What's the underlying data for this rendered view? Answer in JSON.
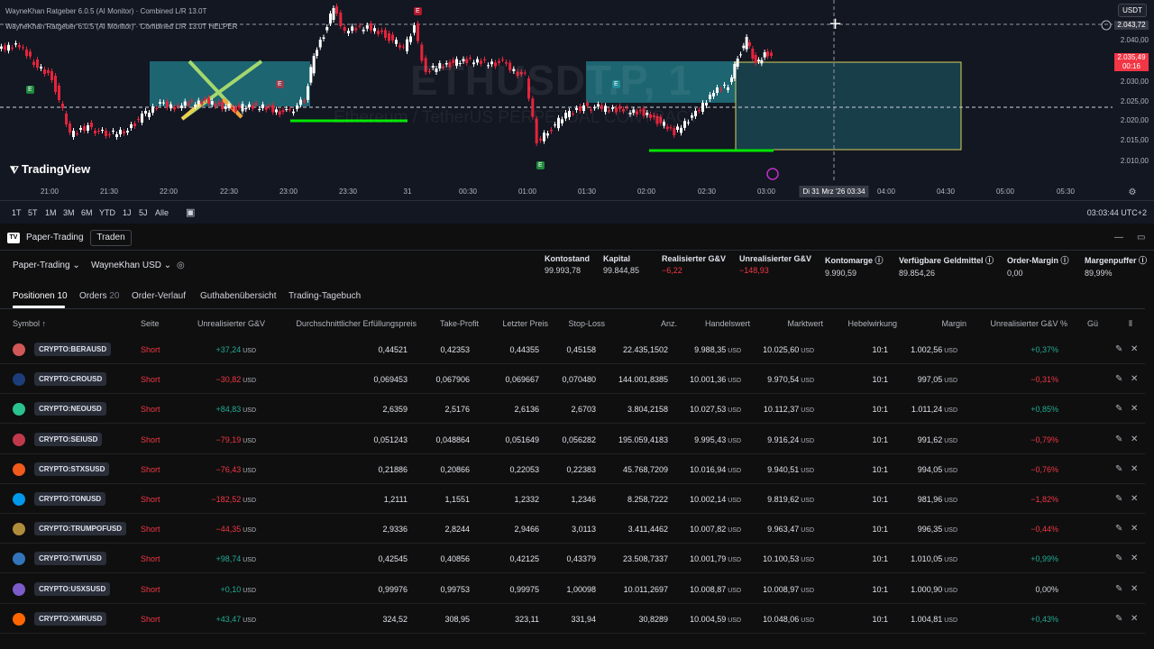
{
  "chart": {
    "indicator_1": "WayneKhan Ratgeber 6.0.5 (AI Monitor) · Combined L/R 13.0T",
    "indicator_2": "WayneKhan Ratgeber 6.0.5 (AI Monitor) · Combined L/R 13.0T HELPER",
    "watermark_symbol": "ETHUSDT.P, 1",
    "watermark_desc": "Ethereum / TetherUS PERPETUAL CONTRACT",
    "currency_btn": "USDT",
    "price_labels": [
      "2.040,00",
      "2.030,00",
      "2.025,00",
      "2.020,00",
      "2.015,00",
      "2.010,00"
    ],
    "crosshair_price": "2.043,72",
    "last_price": "2.035,49",
    "last_price_countdown": "00:16",
    "time_labels": [
      "21:00",
      "21:30",
      "22:00",
      "22:30",
      "23:00",
      "23:30",
      "31",
      "00:30",
      "01:00",
      "01:30",
      "02:00",
      "02:30",
      "03:00",
      "04:00",
      "04:30",
      "05:00",
      "05:30"
    ],
    "crosshair_time": "Di 31 Mrz '26   03:34",
    "logo": "TradingView",
    "marker_e": "E",
    "colors": {
      "up": "#ffffff",
      "down": "#e5243b",
      "zone": "#26a6b3",
      "green_line": "#00e600",
      "last_price_bg": "#f23645"
    }
  },
  "range_bar": {
    "buttons": [
      "1T",
      "5T",
      "1M",
      "3M",
      "6M",
      "YTD",
      "1J",
      "5J",
      "Alle"
    ],
    "clock": "03:03:44 UTC+2"
  },
  "panel": {
    "broker": "Paper-Trading",
    "trade_button": "Traden",
    "account": "Paper-Trading ⌄",
    "user": "WayneKhan USD ⌄",
    "stats": [
      {
        "label": "Kontostand",
        "value": "99.993,78",
        "tone": "neu"
      },
      {
        "label": "Kapital",
        "value": "99.844,85",
        "tone": "neu"
      },
      {
        "label": "Realisierter G&V",
        "value": "−6,22",
        "tone": "neg"
      },
      {
        "label": "Unrealisierter G&V",
        "value": "−148,93",
        "tone": "neg"
      },
      {
        "label": "Kontomarge ⓘ",
        "value": "9.990,59",
        "tone": "neu"
      },
      {
        "label": "Verfügbare Geldmittel ⓘ",
        "value": "89.854,26",
        "tone": "neu"
      },
      {
        "label": "Order-Margin ⓘ",
        "value": "0,00",
        "tone": "neu"
      },
      {
        "label": "Margenpuffer ⓘ",
        "value": "89,99%",
        "tone": "neu"
      }
    ],
    "tabs": [
      {
        "label": "Positionen",
        "count": "10"
      },
      {
        "label": "Orders",
        "count": "20"
      },
      {
        "label": "Order-Verlauf",
        "count": ""
      },
      {
        "label": "Guthabenübersicht",
        "count": ""
      },
      {
        "label": "Trading-Tagebuch",
        "count": ""
      }
    ],
    "columns": [
      "Symbol ↑",
      "Seite",
      "Unrealisierter G&V",
      "Durchschnittlicher Erfüllungspreis",
      "Take-Profit",
      "Letzter Preis",
      "Stop-Loss",
      "Anz.",
      "Handelswert",
      "Marktwert",
      "Hebelwirkung",
      "Margin",
      "Unrealisierter G&V %",
      "Gü"
    ],
    "unit": "USD",
    "positions": [
      {
        "symbol": "CRYPTO:BERAUSD",
        "side": "Short",
        "pnl": "+37,24",
        "pnl_tone": "pos",
        "avg": "0,44521",
        "tp": "0,42353",
        "last": "0,44355",
        "sl": "0,45158",
        "qty": "22.435,1502",
        "trade_val": "9.988,35",
        "mkt_val": "10.025,60",
        "lev": "10:1",
        "margin": "1.002,56",
        "pnl_pct": "+0,37%",
        "icon_color": "#d25858"
      },
      {
        "symbol": "CRYPTO:CROUSD",
        "side": "Short",
        "pnl": "−30,82",
        "pnl_tone": "neg",
        "avg": "0,069453",
        "tp": "0,067906",
        "last": "0,069667",
        "sl": "0,070480",
        "qty": "144.001,8385",
        "trade_val": "10.001,36",
        "mkt_val": "9.970,54",
        "lev": "10:1",
        "margin": "997,05",
        "pnl_pct": "−0,31%",
        "icon_color": "#1d3d7a"
      },
      {
        "symbol": "CRYPTO:NEOUSD",
        "side": "Short",
        "pnl": "+84,83",
        "pnl_tone": "pos",
        "avg": "2,6359",
        "tp": "2,5176",
        "last": "2,6136",
        "sl": "2,6703",
        "qty": "3.804,2158",
        "trade_val": "10.027,53",
        "mkt_val": "10.112,37",
        "lev": "10:1",
        "margin": "1.011,24",
        "pnl_pct": "+0,85%",
        "icon_color": "#29c38f"
      },
      {
        "symbol": "CRYPTO:SEIUSD",
        "side": "Short",
        "pnl": "−79,19",
        "pnl_tone": "neg",
        "avg": "0,051243",
        "tp": "0,048864",
        "last": "0,051649",
        "sl": "0,056282",
        "qty": "195.059,4183",
        "trade_val": "9.995,43",
        "mkt_val": "9.916,24",
        "lev": "10:1",
        "margin": "991,62",
        "pnl_pct": "−0,79%",
        "icon_color": "#c0394b"
      },
      {
        "symbol": "CRYPTO:STXSUSD",
        "side": "Short",
        "pnl": "−76,43",
        "pnl_tone": "neg",
        "avg": "0,21886",
        "tp": "0,20866",
        "last": "0,22053",
        "sl": "0,22383",
        "qty": "45.768,7209",
        "trade_val": "10.016,94",
        "mkt_val": "9.940,51",
        "lev": "10:1",
        "margin": "994,05",
        "pnl_pct": "−0,76%",
        "icon_color": "#f05a1a"
      },
      {
        "symbol": "CRYPTO:TONUSD",
        "side": "Short",
        "pnl": "−182,52",
        "pnl_tone": "neg",
        "avg": "1,2111",
        "tp": "1,1551",
        "last": "1,2332",
        "sl": "1,2346",
        "qty": "8.258,7222",
        "trade_val": "10.002,14",
        "mkt_val": "9.819,62",
        "lev": "10:1",
        "margin": "981,96",
        "pnl_pct": "−1,82%",
        "icon_color": "#0098ea"
      },
      {
        "symbol": "CRYPTO:TRUMPOFUSD",
        "side": "Short",
        "pnl": "−44,35",
        "pnl_tone": "neg",
        "avg": "2,9336",
        "tp": "2,8244",
        "last": "2,9466",
        "sl": "3,0113",
        "qty": "3.411,4462",
        "trade_val": "10.007,82",
        "mkt_val": "9.963,47",
        "lev": "10:1",
        "margin": "996,35",
        "pnl_pct": "−0,44%",
        "icon_color": "#b08d3a"
      },
      {
        "symbol": "CRYPTO:TWTUSD",
        "side": "Short",
        "pnl": "+98,74",
        "pnl_tone": "pos",
        "avg": "0,42545",
        "tp": "0,40856",
        "last": "0,42125",
        "sl": "0,43379",
        "qty": "23.508,7337",
        "trade_val": "10.001,79",
        "mkt_val": "10.100,53",
        "lev": "10:1",
        "margin": "1.010,05",
        "pnl_pct": "+0,99%",
        "icon_color": "#3375bb"
      },
      {
        "symbol": "CRYPTO:USXSUSD",
        "side": "Short",
        "pnl": "+0,10",
        "pnl_tone": "pos",
        "avg": "0,99976",
        "tp": "0,99753",
        "last": "0,99975",
        "sl": "1,00098",
        "qty": "10.011,2697",
        "trade_val": "10.008,87",
        "mkt_val": "10.008,97",
        "lev": "10:1",
        "margin": "1.000,90",
        "pnl_pct": "0,00%",
        "icon_color": "#7b5cc9"
      },
      {
        "symbol": "CRYPTO:XMRUSD",
        "side": "Short",
        "pnl": "+43,47",
        "pnl_tone": "pos",
        "avg": "324,52",
        "tp": "308,95",
        "last": "323,11",
        "sl": "331,94",
        "qty": "30,8289",
        "trade_val": "10.004,59",
        "mkt_val": "10.048,06",
        "lev": "10:1",
        "margin": "1.004,81",
        "pnl_pct": "+0,43%",
        "icon_color": "#ff6600"
      }
    ]
  }
}
